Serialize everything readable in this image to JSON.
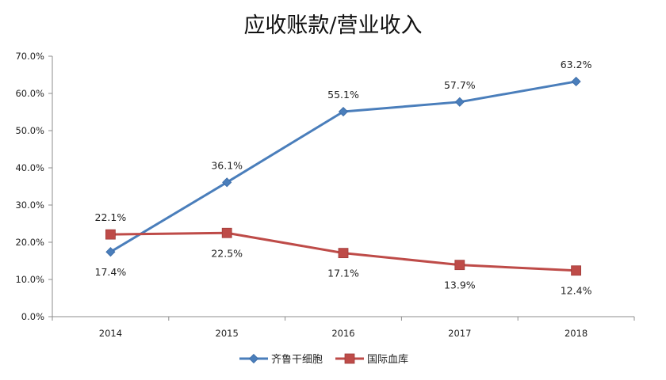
{
  "chart_data": {
    "type": "line",
    "title": "应收账款/营业收入",
    "categories": [
      "2014",
      "2015",
      "2016",
      "2017",
      "2018"
    ],
    "ylim": [
      0,
      70
    ],
    "yticks": [
      0,
      10,
      20,
      30,
      40,
      50,
      60,
      70
    ],
    "ytick_labels": [
      "0.0%",
      "10.0%",
      "20.0%",
      "30.0%",
      "40.0%",
      "50.0%",
      "60.0%",
      "70.0%"
    ],
    "grid": false,
    "legend_position": "bottom",
    "series": [
      {
        "name": "齐鲁干细胞",
        "marker": "diamond",
        "color": "#4a7ebb",
        "values": [
          17.4,
          36.1,
          55.1,
          57.7,
          63.2
        ],
        "labels": [
          "17.4%",
          "36.1%",
          "55.1%",
          "57.7%",
          "63.2%"
        ],
        "label_positions": [
          "below",
          "above",
          "above",
          "above",
          "above"
        ]
      },
      {
        "name": "国际血库",
        "marker": "square",
        "color": "#be4b48",
        "values": [
          22.1,
          22.5,
          17.1,
          13.9,
          12.4
        ],
        "labels": [
          "22.1%",
          "22.5%",
          "17.1%",
          "13.9%",
          "12.4%"
        ],
        "label_positions": [
          "above",
          "below",
          "below",
          "below",
          "below"
        ]
      }
    ]
  }
}
